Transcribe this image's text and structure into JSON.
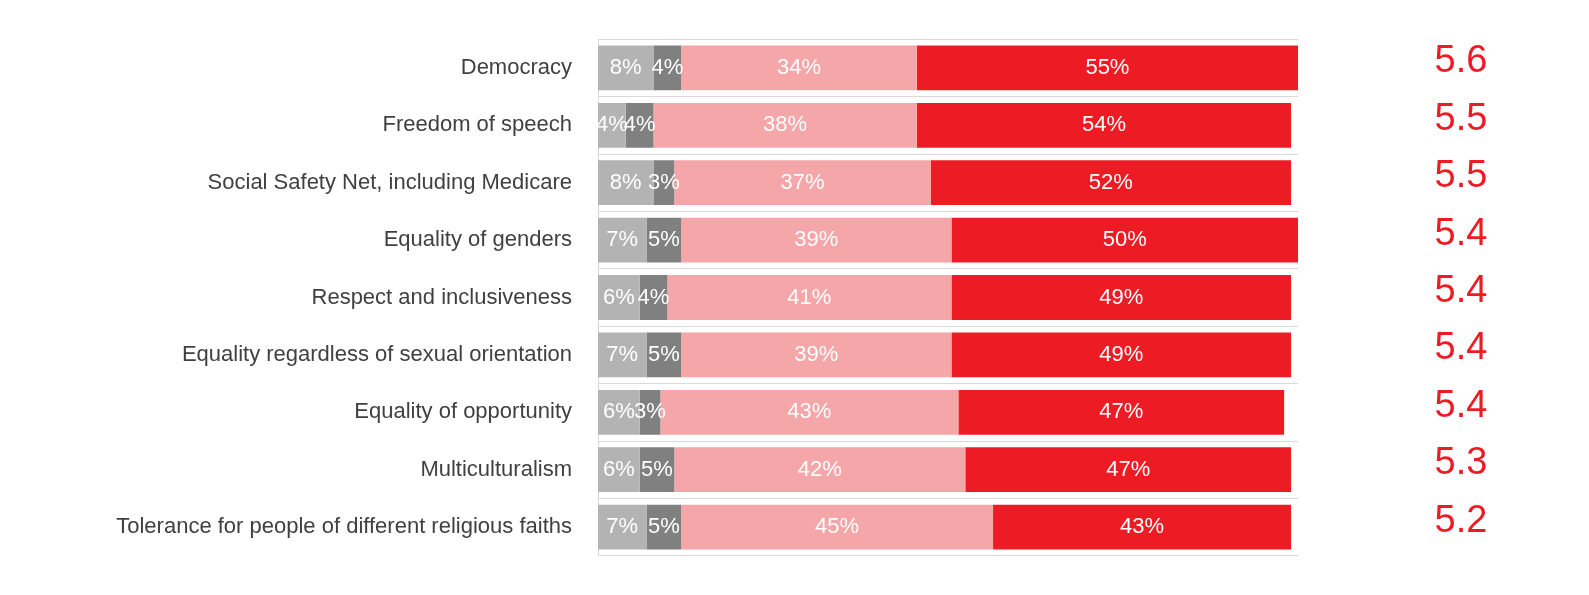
{
  "chart_data": {
    "type": "bar",
    "orientation": "horizontal",
    "stacked": true,
    "grid": "y",
    "legend": false,
    "tick_labels": "y",
    "categories": [
      "Democracy",
      "Freedom of speech",
      "Social Safety Net, including Medicare",
      "Equality of genders",
      "Respect and inclusiveness",
      "Equality regardless of sexual orientation",
      "Equality of opportunity",
      "Multiculturalism",
      "Tolerance for people of different religious faiths"
    ],
    "series": [
      {
        "color": "#b3b3b3",
        "values": [
          8,
          4,
          8,
          7,
          6,
          7,
          6,
          6,
          7
        ],
        "value_labels": [
          "8%",
          "4%",
          "8%",
          "7%",
          "6%",
          "7%",
          "6%",
          "6%",
          "7%"
        ]
      },
      {
        "color": "#808080",
        "values": [
          4,
          4,
          3,
          5,
          4,
          5,
          3,
          5,
          5
        ],
        "value_labels": [
          "4%",
          "4%",
          "3%",
          "5%",
          "4%",
          "5%",
          "3%",
          "5%",
          "5%"
        ]
      },
      {
        "color": "#f4a6a8",
        "values": [
          34,
          38,
          37,
          39,
          41,
          39,
          43,
          42,
          45
        ],
        "value_labels": [
          "34%",
          "38%",
          "37%",
          "39%",
          "41%",
          "39%",
          "43%",
          "42%",
          "45%"
        ]
      },
      {
        "color": "#ed1c24",
        "values": [
          55,
          54,
          52,
          50,
          49,
          49,
          47,
          47,
          43
        ],
        "value_labels": [
          "55%",
          "54%",
          "52%",
          "50%",
          "49%",
          "49%",
          "47%",
          "47%",
          "43%"
        ]
      }
    ],
    "annotations": [
      "5.6",
      "5.5",
      "5.5",
      "5.4",
      "5.4",
      "5.4",
      "5.4",
      "5.3",
      "5.2"
    ]
  }
}
